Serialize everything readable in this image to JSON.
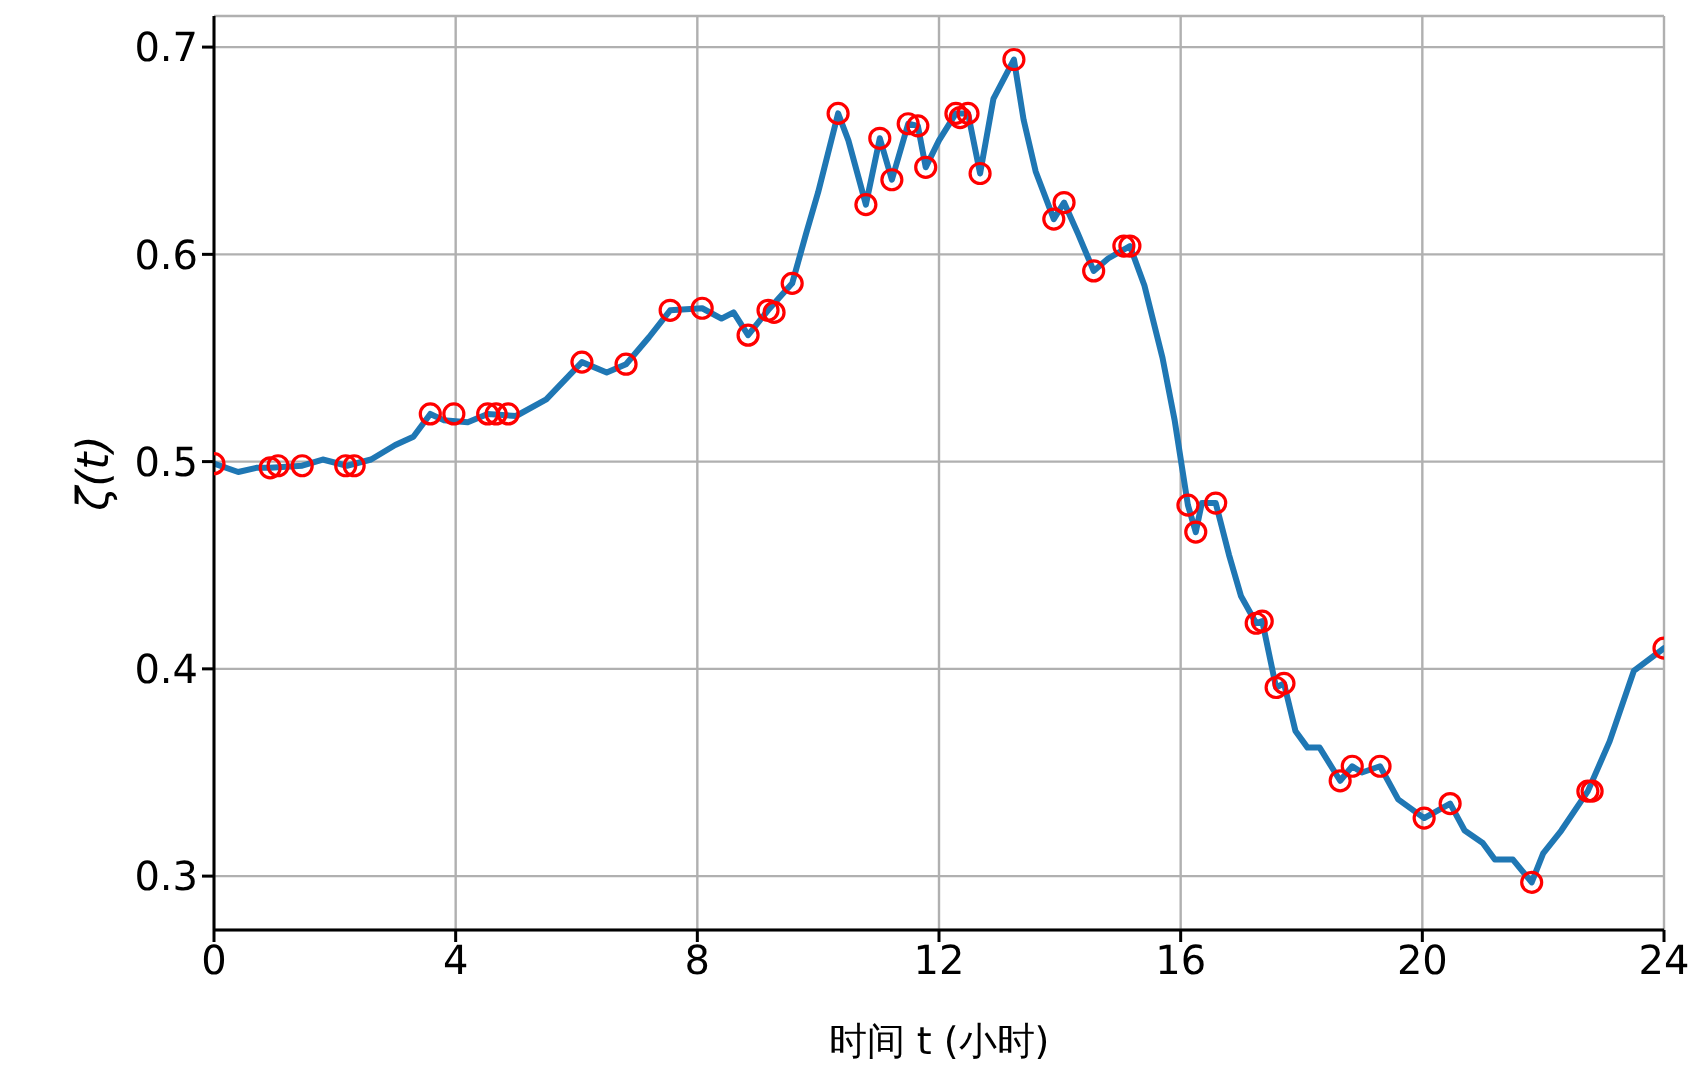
{
  "chart_data": {
    "type": "line",
    "xlabel": "时间 t (小时)",
    "ylabel": "ζ(t)",
    "xlim": [
      0,
      24
    ],
    "xticks": [
      0,
      4,
      8,
      12,
      16,
      20,
      24
    ],
    "ylim": [
      0.274,
      0.715
    ],
    "yticks": [
      0.3,
      0.4,
      0.5,
      0.6,
      0.7
    ],
    "grid": true,
    "series": [
      {
        "color": "#1f77b4",
        "marker": "none",
        "line_style": "solid",
        "x": [
          0,
          0.4,
          0.7,
          0.93,
          1.46,
          1.8,
          2.2,
          2.6,
          3.0,
          3.3,
          3.58,
          3.8,
          4.2,
          4.53,
          5.0,
          5.5,
          6.09,
          6.5,
          6.82,
          7.2,
          7.55,
          8.08,
          8.4,
          8.6,
          8.84,
          9.17,
          9.57,
          9.8,
          10.0,
          10.33,
          10.5,
          10.79,
          11.02,
          11.22,
          11.49,
          11.65,
          11.78,
          12.0,
          12.28,
          12.48,
          12.68,
          12.9,
          13.24,
          13.4,
          13.6,
          13.9,
          14.07,
          14.3,
          14.56,
          14.8,
          15.16,
          15.4,
          15.7,
          15.9,
          16.12,
          16.25,
          16.35,
          16.58,
          16.8,
          17.0,
          17.25,
          17.35,
          17.58,
          17.71,
          17.9,
          18.1,
          18.3,
          18.64,
          18.84,
          19.0,
          19.3,
          19.6,
          20.03,
          20.46,
          20.7,
          21.0,
          21.2,
          21.5,
          21.81,
          22.0,
          22.3,
          22.74,
          23.1,
          23.5,
          24.0
        ],
        "values": [
          0.499,
          0.495,
          0.497,
          0.497,
          0.498,
          0.501,
          0.498,
          0.501,
          0.508,
          0.512,
          0.523,
          0.52,
          0.519,
          0.523,
          0.522,
          0.53,
          0.548,
          0.543,
          0.547,
          0.56,
          0.573,
          0.574,
          0.569,
          0.572,
          0.561,
          0.573,
          0.586,
          0.61,
          0.63,
          0.668,
          0.655,
          0.624,
          0.656,
          0.636,
          0.663,
          0.662,
          0.642,
          0.655,
          0.668,
          0.668,
          0.639,
          0.675,
          0.694,
          0.665,
          0.64,
          0.617,
          0.625,
          0.61,
          0.592,
          0.598,
          0.604,
          0.585,
          0.55,
          0.52,
          0.479,
          0.466,
          0.48,
          0.48,
          0.455,
          0.435,
          0.422,
          0.423,
          0.391,
          0.393,
          0.37,
          0.362,
          0.362,
          0.346,
          0.353,
          0.35,
          0.353,
          0.337,
          0.328,
          0.335,
          0.322,
          0.316,
          0.308,
          0.308,
          0.297,
          0.311,
          0.322,
          0.341,
          0.365,
          0.399,
          0.41
        ]
      },
      {
        "type": "scatter",
        "color": "#ff0000",
        "marker": "circle",
        "x": [
          0,
          0.93,
          1.06,
          1.46,
          2.18,
          2.32,
          3.58,
          3.97,
          4.53,
          4.67,
          4.87,
          6.09,
          6.82,
          7.55,
          8.08,
          8.84,
          9.17,
          9.27,
          9.57,
          10.33,
          10.79,
          11.02,
          11.22,
          11.49,
          11.65,
          11.78,
          12.28,
          12.35,
          12.48,
          12.68,
          13.24,
          13.9,
          14.07,
          14.56,
          15.06,
          15.16,
          16.12,
          16.25,
          16.58,
          17.25,
          17.35,
          17.58,
          17.71,
          18.64,
          18.84,
          19.3,
          20.03,
          20.46,
          21.81,
          22.74,
          22.81,
          24.0
        ],
        "values": [
          0.499,
          0.497,
          0.498,
          0.498,
          0.498,
          0.498,
          0.523,
          0.523,
          0.523,
          0.523,
          0.523,
          0.548,
          0.547,
          0.573,
          0.574,
          0.561,
          0.573,
          0.572,
          0.586,
          0.668,
          0.624,
          0.656,
          0.636,
          0.663,
          0.662,
          0.642,
          0.668,
          0.666,
          0.668,
          0.639,
          0.694,
          0.617,
          0.625,
          0.592,
          0.604,
          0.604,
          0.479,
          0.466,
          0.48,
          0.422,
          0.423,
          0.391,
          0.393,
          0.346,
          0.353,
          0.353,
          0.328,
          0.335,
          0.297,
          0.341,
          0.341,
          0.41
        ]
      }
    ]
  }
}
